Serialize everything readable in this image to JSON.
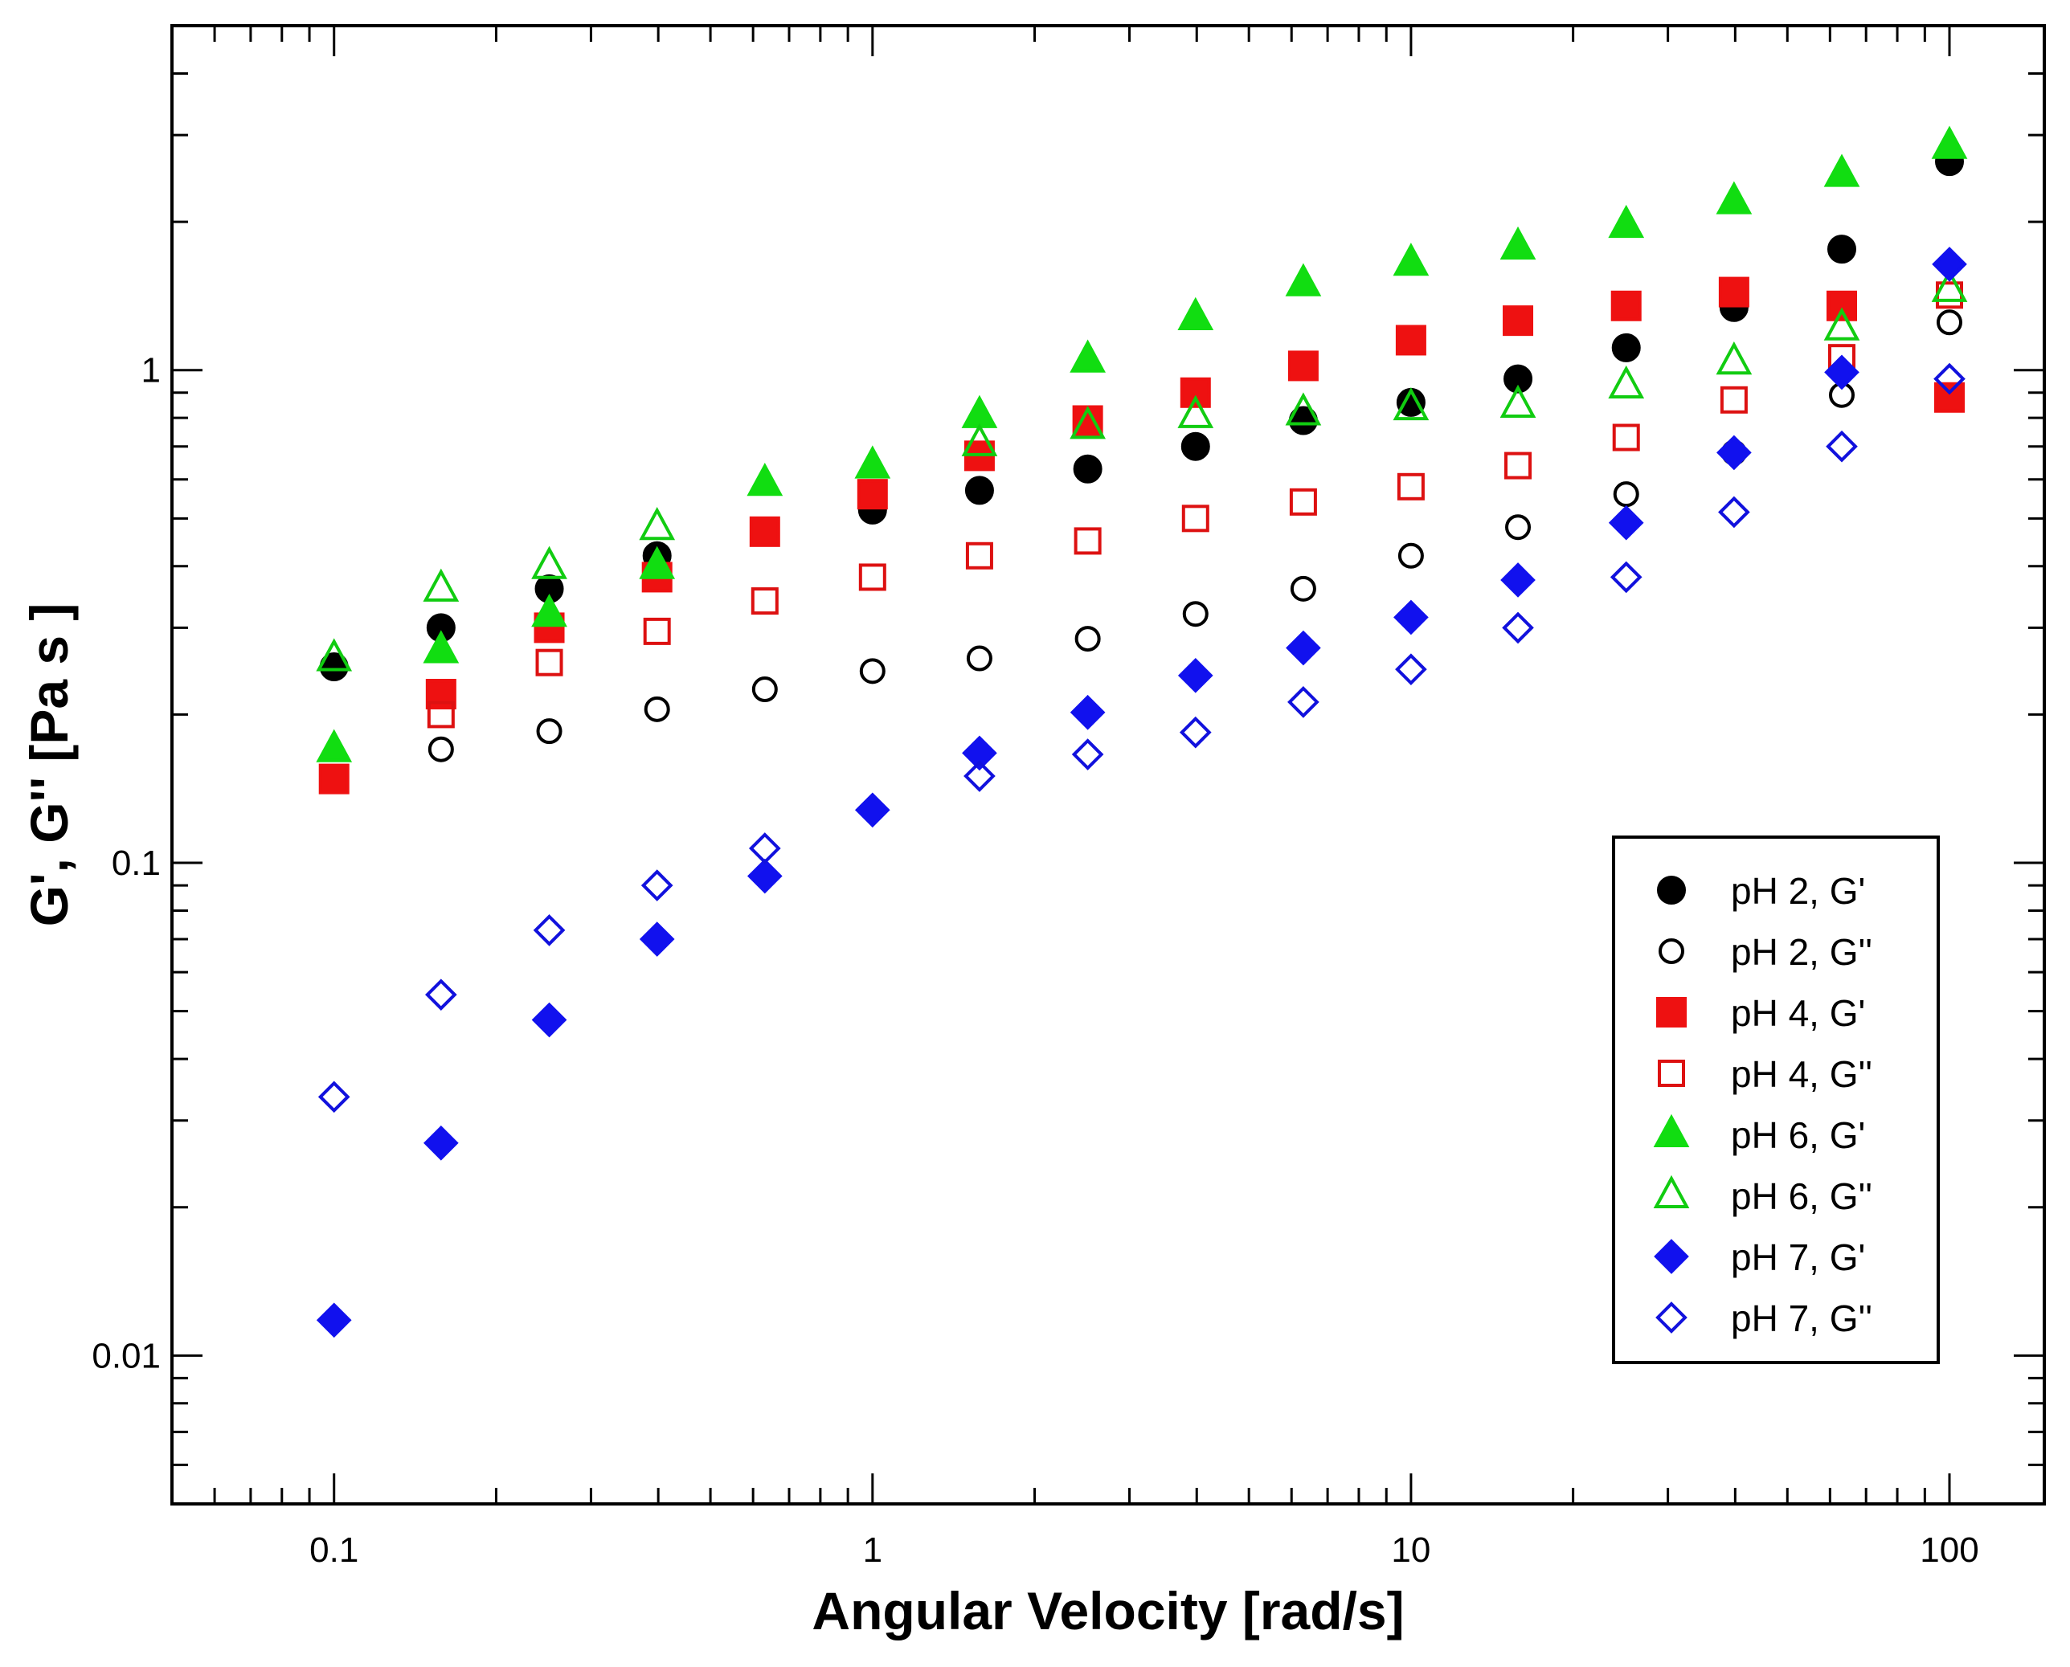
{
  "chart_data": {
    "type": "scatter",
    "title": "",
    "xlabel": "Angular Velocity [rad/s]",
    "ylabel": "G', G'' [Pa s ]",
    "xscale": "log",
    "yscale": "log",
    "xlim": [
      0.05,
      150
    ],
    "ylim": [
      0.005,
      5
    ],
    "xtick_labels": [
      "0.1",
      "1",
      "10",
      "100"
    ],
    "ytick_labels": [
      "0.01",
      "0.1",
      "1"
    ],
    "legend_position": "bottom-right",
    "x": [
      0.1,
      0.158,
      0.251,
      0.398,
      0.631,
      1,
      1.58,
      2.51,
      3.98,
      6.31,
      10,
      15.8,
      25.1,
      39.8,
      63.1,
      100
    ],
    "series": [
      {
        "name": "pH 2, G'",
        "color": "#000000",
        "marker": "circle",
        "filled": true,
        "values": [
          0.25,
          0.3,
          0.36,
          0.42,
          null,
          0.52,
          0.57,
          0.63,
          0.7,
          0.79,
          0.86,
          0.96,
          1.11,
          1.34,
          1.76,
          2.65
        ]
      },
      {
        "name": "pH 2, G''",
        "color": "#000000",
        "marker": "circle",
        "filled": false,
        "values": [
          null,
          0.17,
          0.185,
          0.205,
          0.225,
          0.245,
          0.26,
          0.285,
          0.32,
          0.36,
          0.42,
          0.48,
          0.56,
          0.68,
          0.89,
          1.25
        ]
      },
      {
        "name": "pH 4, G'",
        "color": "#ee1111",
        "marker": "square",
        "filled": true,
        "values": [
          0.148,
          0.22,
          0.3,
          0.38,
          0.47,
          0.56,
          0.67,
          0.79,
          0.9,
          1.02,
          1.15,
          1.26,
          1.35,
          1.44,
          1.35,
          0.88
        ]
      },
      {
        "name": "pH 4, G''",
        "color": "#dd1111",
        "marker": "square",
        "filled": false,
        "values": [
          null,
          0.2,
          0.255,
          0.295,
          0.34,
          0.38,
          0.42,
          0.45,
          0.5,
          0.54,
          0.58,
          0.64,
          0.73,
          0.87,
          1.06,
          1.42
        ]
      },
      {
        "name": "pH 6, G'",
        "color": "#11dd11",
        "marker": "triangle",
        "filled": true,
        "values": [
          0.17,
          0.27,
          0.32,
          0.4,
          0.59,
          0.64,
          0.81,
          1.05,
          1.28,
          1.5,
          1.65,
          1.78,
          1.97,
          2.2,
          2.5,
          2.85
        ]
      },
      {
        "name": "pH 6, G''",
        "color": "#11cc11",
        "marker": "triangle",
        "filled": false,
        "values": [
          0.26,
          0.36,
          0.4,
          0.48,
          null,
          null,
          0.71,
          0.77,
          0.81,
          0.82,
          0.84,
          0.85,
          0.93,
          1.04,
          1.22,
          1.46
        ]
      },
      {
        "name": "pH 7, G'",
        "color": "#1111ee",
        "marker": "diamond",
        "filled": true,
        "values": [
          0.0118,
          0.027,
          0.048,
          0.07,
          0.094,
          0.128,
          0.167,
          0.202,
          0.24,
          0.273,
          0.315,
          0.375,
          0.49,
          0.68,
          0.99,
          1.64
        ]
      },
      {
        "name": "pH 7, G''",
        "color": "#1111dd",
        "marker": "diamond",
        "filled": false,
        "values": [
          0.0335,
          0.054,
          0.073,
          0.09,
          0.107,
          null,
          0.15,
          0.166,
          0.184,
          0.212,
          0.247,
          0.3,
          0.38,
          0.515,
          0.7,
          0.96
        ]
      }
    ]
  }
}
